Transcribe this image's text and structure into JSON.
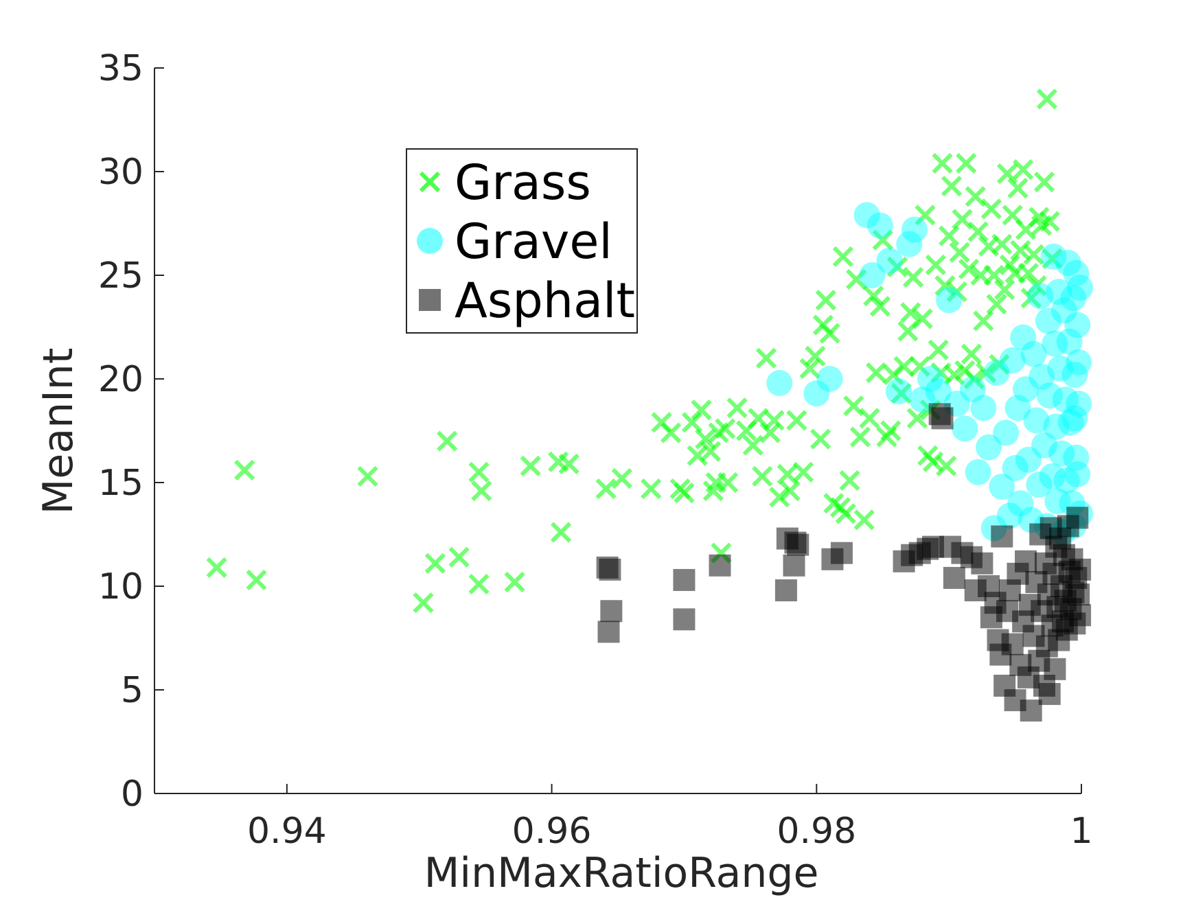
{
  "chart_data": {
    "type": "scatter",
    "title": "",
    "xlabel": "MinMaxRatioRange",
    "ylabel": "MeanInt",
    "xlim": [
      0.93,
      1.0
    ],
    "ylim": [
      0,
      35
    ],
    "xticks": [
      0.94,
      0.96,
      0.98,
      1.0
    ],
    "xtick_labels": [
      "0.94",
      "0.96",
      "0.98",
      "1"
    ],
    "yticks": [
      0,
      5,
      10,
      15,
      20,
      25,
      30,
      35
    ],
    "ytick_labels": [
      "0",
      "5",
      "10",
      "15",
      "20",
      "25",
      "30",
      "35"
    ],
    "grid": false,
    "legend_position": "upper-center",
    "series": [
      {
        "name": "Grass",
        "marker": "x",
        "color": "#00ff00",
        "points": [
          [
            0.9347,
            10.9
          ],
          [
            0.9368,
            15.6
          ],
          [
            0.9377,
            10.3
          ],
          [
            0.9461,
            15.3
          ],
          [
            0.9503,
            9.2
          ],
          [
            0.9512,
            11.1
          ],
          [
            0.9521,
            17.0
          ],
          [
            0.953,
            11.4
          ],
          [
            0.9545,
            15.5
          ],
          [
            0.9547,
            14.6
          ],
          [
            0.9545,
            10.1
          ],
          [
            0.9572,
            10.2
          ],
          [
            0.9584,
            15.8
          ],
          [
            0.9605,
            16.0
          ],
          [
            0.9613,
            15.9
          ],
          [
            0.9607,
            12.6
          ],
          [
            0.9641,
            14.7
          ],
          [
            0.9653,
            15.2
          ],
          [
            0.9675,
            14.7
          ],
          [
            0.9683,
            17.9
          ],
          [
            0.969,
            17.4
          ],
          [
            0.9697,
            14.7
          ],
          [
            0.97,
            14.5
          ],
          [
            0.9706,
            17.9
          ],
          [
            0.971,
            16.3
          ],
          [
            0.9713,
            18.5
          ],
          [
            0.9716,
            17.1
          ],
          [
            0.972,
            16.5
          ],
          [
            0.9722,
            14.6
          ],
          [
            0.9724,
            15.0
          ],
          [
            0.9726,
            17.4
          ],
          [
            0.9728,
            11.6
          ],
          [
            0.9731,
            17.6
          ],
          [
            0.9733,
            15.0
          ],
          [
            0.974,
            18.6
          ],
          [
            0.9747,
            17.5
          ],
          [
            0.9752,
            16.8
          ],
          [
            0.9756,
            18.1
          ],
          [
            0.9759,
            15.3
          ],
          [
            0.9762,
            21.0
          ],
          [
            0.9765,
            17.4
          ],
          [
            0.9768,
            18.0
          ],
          [
            0.9772,
            14.3
          ],
          [
            0.9778,
            15.4
          ],
          [
            0.978,
            14.6
          ],
          [
            0.9785,
            18.0
          ],
          [
            0.979,
            15.5
          ],
          [
            0.9795,
            20.5
          ],
          [
            0.9799,
            21.1
          ],
          [
            0.9803,
            17.1
          ],
          [
            0.9805,
            22.6
          ],
          [
            0.9807,
            23.8
          ],
          [
            0.981,
            22.2
          ],
          [
            0.9813,
            14.0
          ],
          [
            0.9818,
            13.8
          ],
          [
            0.982,
            25.9
          ],
          [
            0.9822,
            13.5
          ],
          [
            0.9825,
            15.1
          ],
          [
            0.9828,
            18.7
          ],
          [
            0.983,
            24.8
          ],
          [
            0.9833,
            17.2
          ],
          [
            0.9836,
            13.2
          ],
          [
            0.984,
            18.1
          ],
          [
            0.9843,
            24.0
          ],
          [
            0.9845,
            20.3
          ],
          [
            0.9848,
            23.5
          ],
          [
            0.985,
            26.7
          ],
          [
            0.9853,
            17.2
          ],
          [
            0.9856,
            17.5
          ],
          [
            0.9858,
            20.2
          ],
          [
            0.9861,
            25.4
          ],
          [
            0.9864,
            19.3
          ],
          [
            0.9866,
            20.6
          ],
          [
            0.9869,
            22.3
          ],
          [
            0.9871,
            23.2
          ],
          [
            0.9873,
            24.9
          ],
          [
            0.9876,
            18.1
          ],
          [
            0.9878,
            20.6
          ],
          [
            0.988,
            22.9
          ],
          [
            0.9882,
            27.9
          ],
          [
            0.9884,
            16.3
          ],
          [
            0.9886,
            18.5
          ],
          [
            0.9888,
            16.0
          ],
          [
            0.989,
            25.5
          ],
          [
            0.9892,
            21.4
          ],
          [
            0.9894,
            20.3
          ],
          [
            0.9895,
            30.4
          ],
          [
            0.9897,
            24.5
          ],
          [
            0.9898,
            15.8
          ],
          [
            0.99,
            26.9
          ],
          [
            0.9902,
            29.3
          ],
          [
            0.9904,
            20.2
          ],
          [
            0.9906,
            24.2
          ],
          [
            0.9908,
            26.1
          ],
          [
            0.991,
            27.7
          ],
          [
            0.9912,
            20.4
          ],
          [
            0.9913,
            30.4
          ],
          [
            0.9915,
            25.3
          ],
          [
            0.9917,
            21.2
          ],
          [
            0.9919,
            20.0
          ],
          [
            0.992,
            28.8
          ],
          [
            0.9922,
            27.1
          ],
          [
            0.9924,
            25.0
          ],
          [
            0.9926,
            22.8
          ],
          [
            0.9928,
            20.3
          ],
          [
            0.993,
            26.4
          ],
          [
            0.9932,
            28.2
          ],
          [
            0.9934,
            25.0
          ],
          [
            0.9936,
            23.6
          ],
          [
            0.9938,
            20.7
          ],
          [
            0.994,
            26.5
          ],
          [
            0.9942,
            24.3
          ],
          [
            0.9944,
            29.9
          ],
          [
            0.9946,
            25.5
          ],
          [
            0.9948,
            27.9
          ],
          [
            0.995,
            25.1
          ],
          [
            0.9952,
            29.2
          ],
          [
            0.9954,
            26.2
          ],
          [
            0.9956,
            30.1
          ],
          [
            0.9958,
            27.2
          ],
          [
            0.996,
            25.1
          ],
          [
            0.9962,
            23.9
          ],
          [
            0.9964,
            26.0
          ],
          [
            0.9966,
            24.5
          ],
          [
            0.9968,
            27.8
          ],
          [
            0.997,
            27.4
          ],
          [
            0.9972,
            29.5
          ],
          [
            0.9974,
            33.5
          ],
          [
            0.9976,
            27.6
          ],
          [
            0.9978,
            25.8
          ]
        ]
      },
      {
        "name": "Gravel",
        "marker": "o",
        "color": "#00ffff",
        "points": [
          [
            0.9772,
            19.8
          ],
          [
            0.98,
            19.3
          ],
          [
            0.981,
            20.0
          ],
          [
            0.9838,
            27.9
          ],
          [
            0.9842,
            25.0
          ],
          [
            0.9848,
            27.4
          ],
          [
            0.9855,
            25.7
          ],
          [
            0.9862,
            19.4
          ],
          [
            0.987,
            26.5
          ],
          [
            0.9874,
            27.2
          ],
          [
            0.988,
            19.0
          ],
          [
            0.9886,
            20.0
          ],
          [
            0.9892,
            19.4
          ],
          [
            0.99,
            23.8
          ],
          [
            0.9906,
            18.8
          ],
          [
            0.9912,
            17.6
          ],
          [
            0.9918,
            19.5
          ],
          [
            0.9922,
            15.5
          ],
          [
            0.9926,
            18.6
          ],
          [
            0.993,
            16.7
          ],
          [
            0.9934,
            12.8
          ],
          [
            0.9936,
            20.3
          ],
          [
            0.994,
            14.8
          ],
          [
            0.9943,
            17.4
          ],
          [
            0.9946,
            13.4
          ],
          [
            0.9948,
            20.9
          ],
          [
            0.995,
            15.7
          ],
          [
            0.9952,
            18.6
          ],
          [
            0.9954,
            14.0
          ],
          [
            0.9956,
            22.0
          ],
          [
            0.9958,
            19.5
          ],
          [
            0.996,
            16.1
          ],
          [
            0.9962,
            13.2
          ],
          [
            0.9964,
            21.2
          ],
          [
            0.9966,
            18.0
          ],
          [
            0.9968,
            14.9
          ],
          [
            0.9969,
            24.0
          ],
          [
            0.997,
            20.1
          ],
          [
            0.9972,
            16.8
          ],
          [
            0.9974,
            12.9
          ],
          [
            0.9975,
            22.8
          ],
          [
            0.9976,
            19.2
          ],
          [
            0.9978,
            15.3
          ],
          [
            0.9979,
            25.9
          ],
          [
            0.998,
            21.7
          ],
          [
            0.9981,
            17.7
          ],
          [
            0.9982,
            14.1
          ],
          [
            0.9983,
            24.2
          ],
          [
            0.9984,
            20.5
          ],
          [
            0.9985,
            16.4
          ],
          [
            0.9986,
            12.6
          ],
          [
            0.9987,
            23.3
          ],
          [
            0.9988,
            19.0
          ],
          [
            0.9989,
            15.1
          ],
          [
            0.999,
            25.6
          ],
          [
            0.9991,
            21.8
          ],
          [
            0.9992,
            17.9
          ],
          [
            0.9993,
            14.0
          ],
          [
            0.9994,
            23.9
          ],
          [
            0.9995,
            20.2
          ],
          [
            0.9996,
            16.2
          ],
          [
            0.9997,
            22.6
          ],
          [
            0.9998,
            18.8
          ],
          [
            0.9999,
            24.4
          ],
          [
            0.9999,
            13.5
          ],
          [
            0.9998,
            20.8
          ],
          [
            0.9997,
            15.4
          ],
          [
            0.9996,
            25.1
          ],
          [
            0.9995,
            18.1
          ],
          [
            0.9994,
            12.9
          ]
        ]
      },
      {
        "name": "Asphalt",
        "marker": "s",
        "color": "#000000",
        "points": [
          [
            0.9642,
            10.9
          ],
          [
            0.9644,
            10.8
          ],
          [
            0.9645,
            8.8
          ],
          [
            0.9643,
            7.8
          ],
          [
            0.97,
            10.3
          ],
          [
            0.97,
            8.4
          ],
          [
            0.9727,
            11.0
          ],
          [
            0.9778,
            12.3
          ],
          [
            0.9786,
            12.0
          ],
          [
            0.9783,
            11.0
          ],
          [
            0.9777,
            9.8
          ],
          [
            0.9812,
            11.3
          ],
          [
            0.9819,
            11.6
          ],
          [
            0.9866,
            11.2
          ],
          [
            0.9872,
            11.5
          ],
          [
            0.9878,
            11.6
          ],
          [
            0.9884,
            11.8
          ],
          [
            0.9888,
            11.9
          ],
          [
            0.9901,
            11.9
          ],
          [
            0.9904,
            10.4
          ],
          [
            0.991,
            11.6
          ],
          [
            0.9917,
            11.4
          ],
          [
            0.992,
            9.8
          ],
          [
            0.9925,
            11.1
          ],
          [
            0.993,
            10.0
          ],
          [
            0.9932,
            8.5
          ],
          [
            0.9935,
            9.2
          ],
          [
            0.9937,
            7.4
          ],
          [
            0.9939,
            6.7
          ],
          [
            0.994,
            12.4
          ],
          [
            0.9942,
            5.2
          ],
          [
            0.9944,
            8.8
          ],
          [
            0.9946,
            9.8
          ],
          [
            0.9948,
            7.2
          ],
          [
            0.995,
            4.5
          ],
          [
            0.9952,
            10.6
          ],
          [
            0.9954,
            6.2
          ],
          [
            0.9956,
            8.3
          ],
          [
            0.9958,
            11.2
          ],
          [
            0.996,
            5.6
          ],
          [
            0.9961,
            9.1
          ],
          [
            0.9962,
            4.0
          ],
          [
            0.9964,
            7.6
          ],
          [
            0.9966,
            10.2
          ],
          [
            0.9968,
            6.4
          ],
          [
            0.9969,
            12.5
          ],
          [
            0.997,
            8.8
          ],
          [
            0.9972,
            5.2
          ],
          [
            0.9973,
            11.1
          ],
          [
            0.9974,
            7.1
          ],
          [
            0.9975,
            9.6
          ],
          [
            0.9976,
            4.8
          ],
          [
            0.9977,
            12.8
          ],
          [
            0.9978,
            8.1
          ],
          [
            0.9979,
            10.6
          ],
          [
            0.998,
            6.0
          ],
          [
            0.9981,
            11.9
          ],
          [
            0.9982,
            9.0
          ],
          [
            0.9983,
            7.4
          ],
          [
            0.9984,
            12.3
          ],
          [
            0.9985,
            10.0
          ],
          [
            0.9986,
            8.3
          ],
          [
            0.9987,
            11.5
          ],
          [
            0.9988,
            9.3
          ],
          [
            0.9989,
            7.9
          ],
          [
            0.999,
            12.9
          ],
          [
            0.9991,
            10.7
          ],
          [
            0.9992,
            8.9
          ],
          [
            0.9993,
            11.3
          ],
          [
            0.9994,
            9.7
          ],
          [
            0.9995,
            8.2
          ],
          [
            0.9996,
            10.4
          ],
          [
            0.9997,
            13.3
          ],
          [
            0.9998,
            9.6
          ],
          [
            0.9999,
            10.8
          ],
          [
            0.9999,
            8.6
          ],
          [
            0.9895,
            18.1
          ],
          [
            0.9893,
            18.3
          ],
          [
            0.9784,
            12.1
          ]
        ]
      }
    ]
  }
}
